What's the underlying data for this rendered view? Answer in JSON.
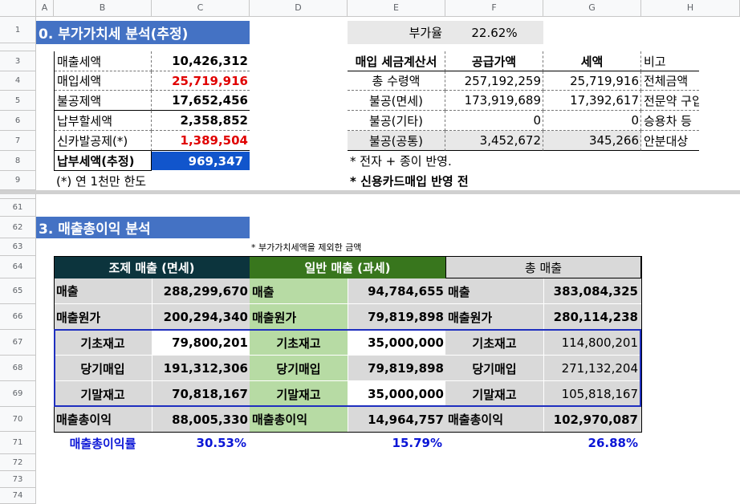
{
  "columns": [
    "A",
    "B",
    "C",
    "D",
    "E",
    "F",
    "G",
    "H"
  ],
  "rows": [
    "1",
    "2",
    "3",
    "4",
    "5",
    "6",
    "7",
    "8",
    "9",
    "61",
    "62",
    "63",
    "64",
    "65",
    "66",
    "67",
    "68",
    "69",
    "70",
    "71",
    "72",
    "73",
    "74"
  ],
  "vat": {
    "title": "0. 부가가치세 분석(추정)",
    "rate_label": "부가율",
    "rate_value": "22.62%",
    "left_items": [
      {
        "label": "매출세액",
        "value": "10,426,312"
      },
      {
        "label": "매입세액",
        "value": "25,719,916"
      },
      {
        "label": "불공제액",
        "value": "17,652,456"
      },
      {
        "label": "납부할세액",
        "value": "2,358,852"
      },
      {
        "label": "신카발공제(*)",
        "value": "1,389,504"
      },
      {
        "label": "납부세액(추정)",
        "value": "969,347"
      }
    ],
    "note_left": "(*) 연 1천만 한도",
    "table_headers": [
      "매입 세금계산서",
      "공급가액",
      "세액",
      "비고"
    ],
    "table_rows": [
      {
        "label": "총 수령액",
        "supply": "257,192,259",
        "tax": "25,719,916",
        "note": "전체금액"
      },
      {
        "label": "불공(면세)",
        "supply": "173,919,689",
        "tax": "17,392,617",
        "note": "전문약 구입"
      },
      {
        "label": "불공(기타)",
        "supply": "0",
        "tax": "0",
        "note": "승용차 등"
      },
      {
        "label": "불공(공통)",
        "supply": "3,452,672",
        "tax": "345,266",
        "note": "안분대상"
      }
    ],
    "note1": "* 전자 + 종이 반영.",
    "note2": "* 신용카드매입 반영 전"
  },
  "gross": {
    "title": "3. 매출총이익 분석",
    "footnote": "* 부가가치세액을 제외한 금액",
    "groups": [
      {
        "header": "조제 매출 (면세)",
        "sales_label": "매출",
        "sales": "288,299,670",
        "cogs_label": "매출원가",
        "cogs": "200,294,340",
        "begin_label": "기초재고",
        "begin": "79,800,201",
        "purchase_label": "당기매입",
        "purchase": "191,312,306",
        "end_label": "기말재고",
        "end": "70,818,167",
        "profit_label": "매출총이익",
        "profit": "88,005,330",
        "margin": "30.53%"
      },
      {
        "header": "일반 매출 (과세)",
        "sales_label": "매출",
        "sales": "94,784,655",
        "cogs_label": "매출원가",
        "cogs": "79,819,898",
        "begin_label": "기초재고",
        "begin": "35,000,000",
        "purchase_label": "당기매입",
        "purchase": "79,819,898",
        "end_label": "기말재고",
        "end": "35,000,000",
        "profit_label": "매출총이익",
        "profit": "14,964,757",
        "margin": "15.79%"
      },
      {
        "header": "총 매출",
        "sales_label": "매출",
        "sales": "383,084,325",
        "cogs_label": "매출원가",
        "cogs": "280,114,238",
        "begin_label": "기초재고",
        "begin": "114,800,201",
        "purchase_label": "당기매입",
        "purchase": "271,132,204",
        "end_label": "기말재고",
        "end": "105,818,167",
        "profit_label": "매출총이익",
        "profit": "102,970,087",
        "margin": "26.88%"
      }
    ],
    "margin_label": "매출총이익률"
  }
}
